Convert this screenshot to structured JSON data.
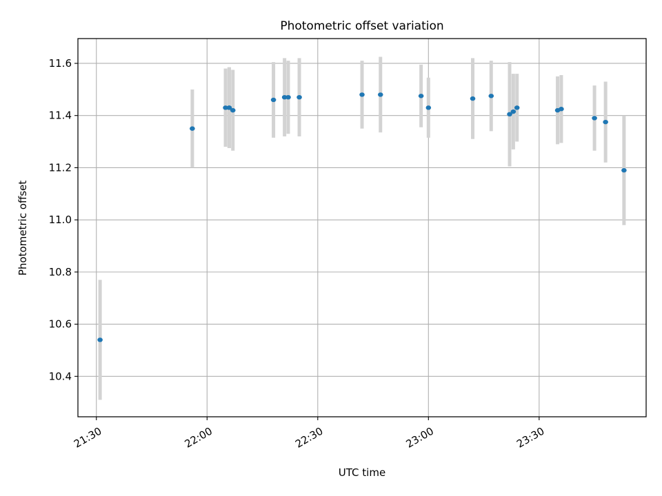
{
  "chart_data": {
    "type": "scatter",
    "title": "Photometric offset variation",
    "xlabel": "UTC time",
    "ylabel": "Photometric offset",
    "x_ticks": [
      "21:30",
      "22:00",
      "22:30",
      "23:00",
      "23:30"
    ],
    "y_ticks": [
      "10.4",
      "10.6",
      "10.8",
      "11.0",
      "11.2",
      "11.4",
      "11.6"
    ],
    "xlim": [
      "21:25",
      "23:59"
    ],
    "ylim": [
      10.245,
      11.695
    ],
    "grid": true,
    "colors": {
      "point": "#1f77b4",
      "errorbar": "#d3d3d3",
      "grid": "#b0b0b0"
    },
    "points": [
      {
        "x": "21:31",
        "y": 10.54,
        "yerr": 0.23
      },
      {
        "x": "21:56",
        "y": 11.35,
        "yerr": 0.15
      },
      {
        "x": "22:05",
        "y": 11.43,
        "yerr": 0.15
      },
      {
        "x": "22:06",
        "y": 11.43,
        "yerr": 0.155
      },
      {
        "x": "22:06",
        "y": 11.43,
        "yerr": 0.155
      },
      {
        "x": "22:07",
        "y": 11.42,
        "yerr": 0.155
      },
      {
        "x": "22:18",
        "y": 11.46,
        "yerr": 0.145
      },
      {
        "x": "22:21",
        "y": 11.47,
        "yerr": 0.15
      },
      {
        "x": "22:22",
        "y": 11.47,
        "yerr": 0.14
      },
      {
        "x": "22:25",
        "y": 11.47,
        "yerr": 0.15
      },
      {
        "x": "22:42",
        "y": 11.48,
        "yerr": 0.13
      },
      {
        "x": "22:47",
        "y": 11.48,
        "yerr": 0.145
      },
      {
        "x": "22:58",
        "y": 11.475,
        "yerr": 0.12
      },
      {
        "x": "23:00",
        "y": 11.43,
        "yerr": 0.115
      },
      {
        "x": "23:12",
        "y": 11.465,
        "yerr": 0.155
      },
      {
        "x": "23:17",
        "y": 11.475,
        "yerr": 0.135
      },
      {
        "x": "23:22",
        "y": 11.405,
        "yerr": 0.2
      },
      {
        "x": "23:23",
        "y": 11.415,
        "yerr": 0.145
      },
      {
        "x": "23:24",
        "y": 11.43,
        "yerr": 0.13
      },
      {
        "x": "23:35",
        "y": 11.42,
        "yerr": 0.13
      },
      {
        "x": "23:36",
        "y": 11.425,
        "yerr": 0.13
      },
      {
        "x": "23:45",
        "y": 11.39,
        "yerr": 0.125
      },
      {
        "x": "23:48",
        "y": 11.375,
        "yerr": 0.155
      },
      {
        "x": "23:53",
        "y": 11.19,
        "yerr": 0.21
      }
    ]
  }
}
